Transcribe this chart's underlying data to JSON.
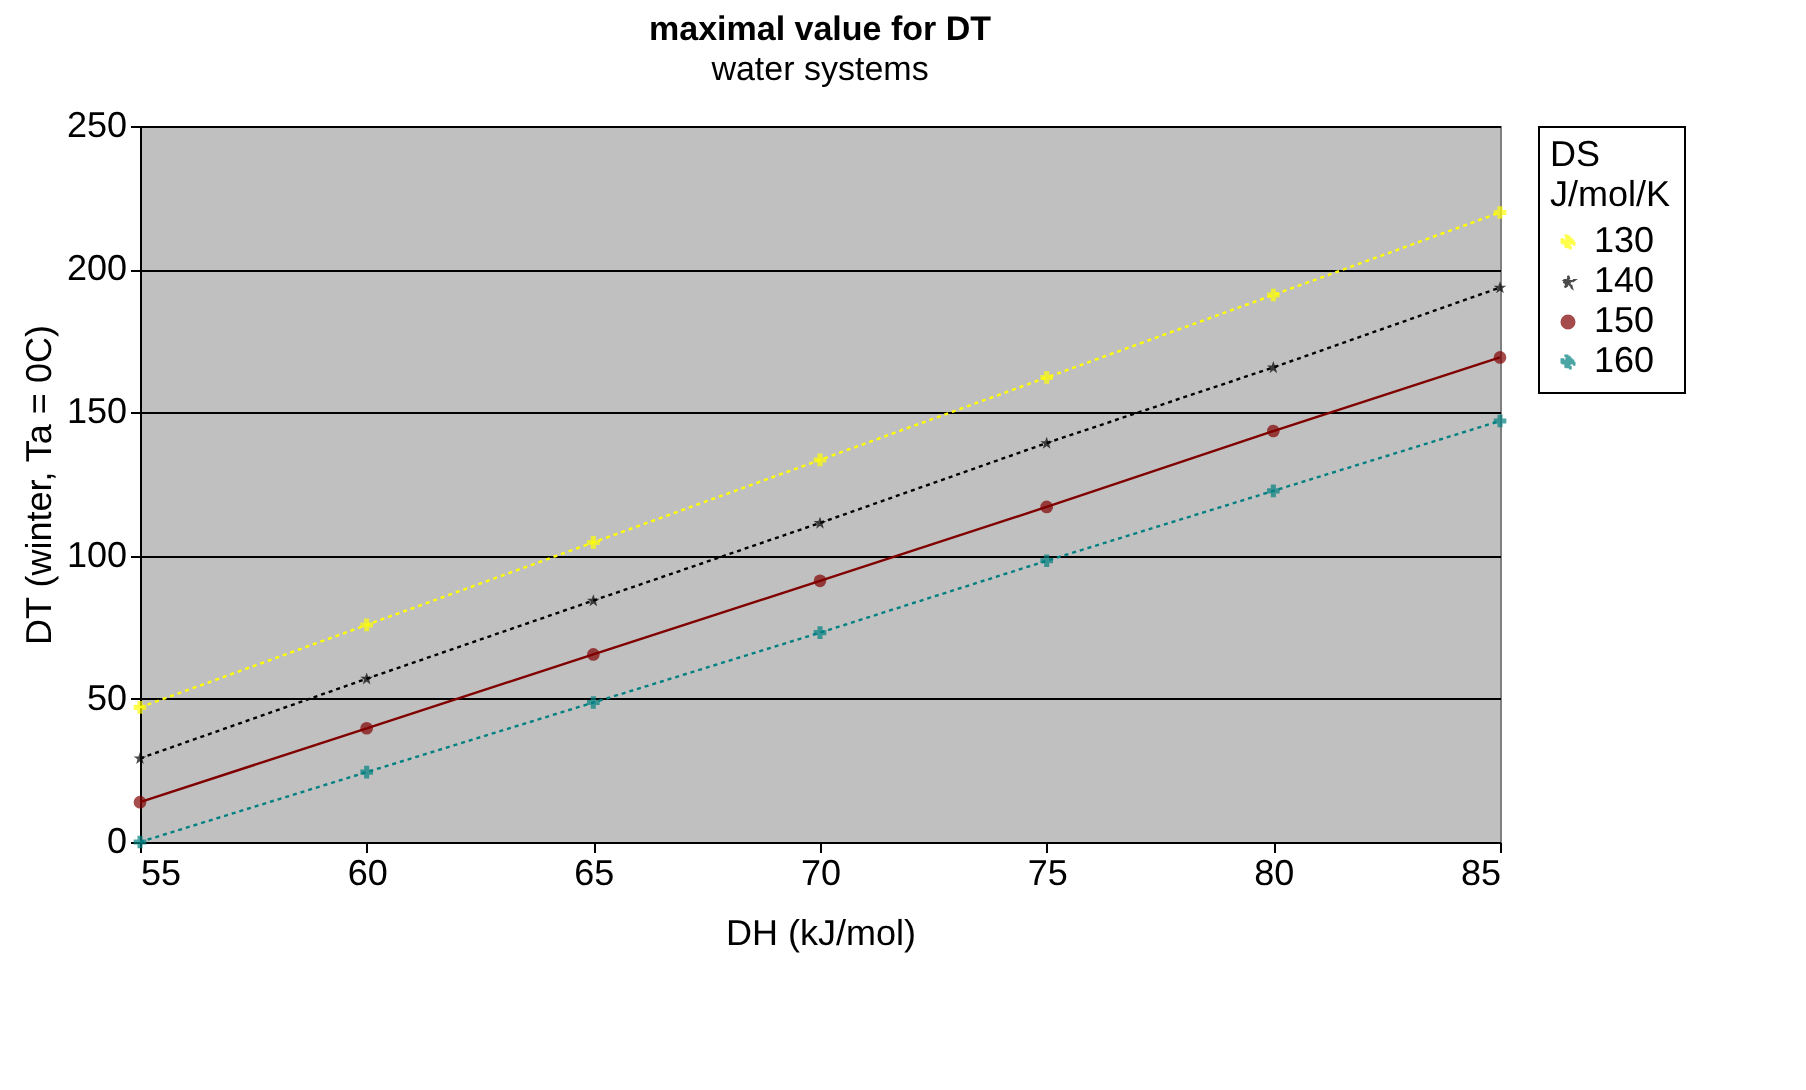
{
  "chart_data": {
    "type": "line",
    "title": "maximal value for DT",
    "subtitle": "water systems",
    "xlabel": "DH (kJ/mol)",
    "ylabel": "DT (winter, Ta = 0C)",
    "legend_title": "DS\nJ/mol/K",
    "x": [
      55,
      60,
      65,
      70,
      75,
      80,
      85
    ],
    "series": [
      {
        "name": "130",
        "color": "#ffff00",
        "marker": "cross",
        "line_style": "dotted",
        "values": [
          47,
          75.8,
          104.6,
          133.4,
          162.2,
          191,
          219.8
        ]
      },
      {
        "name": "140",
        "color": "#000000",
        "marker": "star",
        "line_style": "dotted",
        "values": [
          29.2,
          57,
          84.3,
          111.4,
          139.3,
          165.7,
          193.6
        ]
      },
      {
        "name": "150",
        "color": "#800000",
        "marker": "circle",
        "line_style": "solid",
        "values": [
          13.9,
          39.7,
          65.5,
          91.2,
          117,
          143.5,
          169.2
        ]
      },
      {
        "name": "160",
        "color": "#008080",
        "marker": "cross",
        "line_style": "dotted",
        "values": [
          0,
          24.4,
          48.7,
          73.1,
          98.2,
          122.6,
          147
        ]
      }
    ],
    "xlim": [
      55,
      85
    ],
    "xticks": [
      55,
      60,
      65,
      70,
      75,
      80,
      85
    ],
    "ylim": [
      0,
      250
    ],
    "yticks": [
      0,
      50,
      100,
      150,
      200,
      250
    ],
    "grid": "y",
    "legend": "top right"
  }
}
